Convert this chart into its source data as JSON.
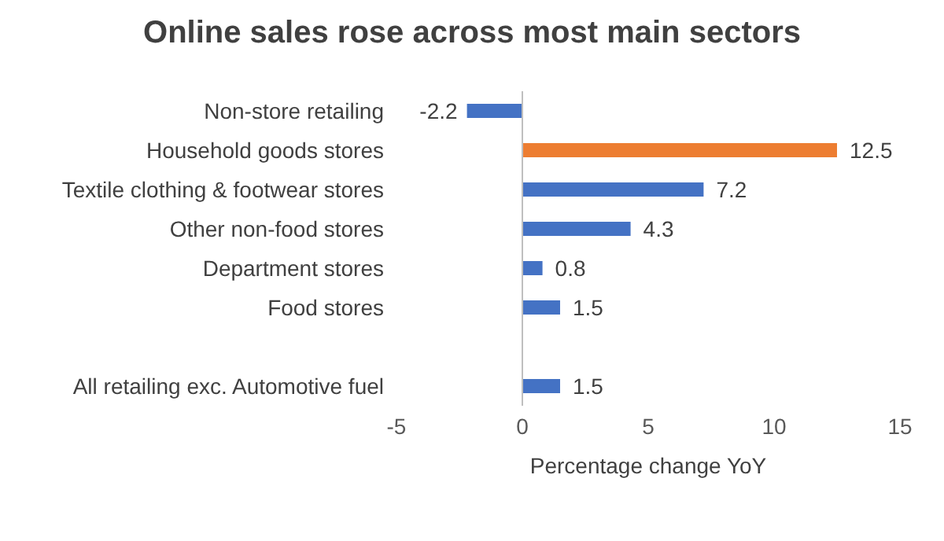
{
  "chart_data": {
    "type": "bar",
    "orientation": "horizontal",
    "title": "Online sales rose across most main sectors",
    "xlabel": "Percentage change YoY",
    "categories": [
      "Non-store retailing",
      "Household goods stores",
      "Textile clothing & footwear stores",
      "Other non-food stores",
      "Department stores",
      "Food stores",
      null,
      "All retailing exc. Automotive fuel"
    ],
    "values": [
      -2.2,
      12.5,
      7.2,
      4.3,
      0.8,
      1.5,
      null,
      1.5
    ],
    "colors": [
      "#4472c4",
      "#ed7d31",
      "#4472c4",
      "#4472c4",
      "#4472c4",
      "#4472c4",
      "#4472c4",
      "#4472c4"
    ],
    "xlim": [
      -5,
      15
    ],
    "xticks": [
      -5,
      0,
      5,
      10,
      15
    ],
    "data_labels": true,
    "legend": false
  }
}
